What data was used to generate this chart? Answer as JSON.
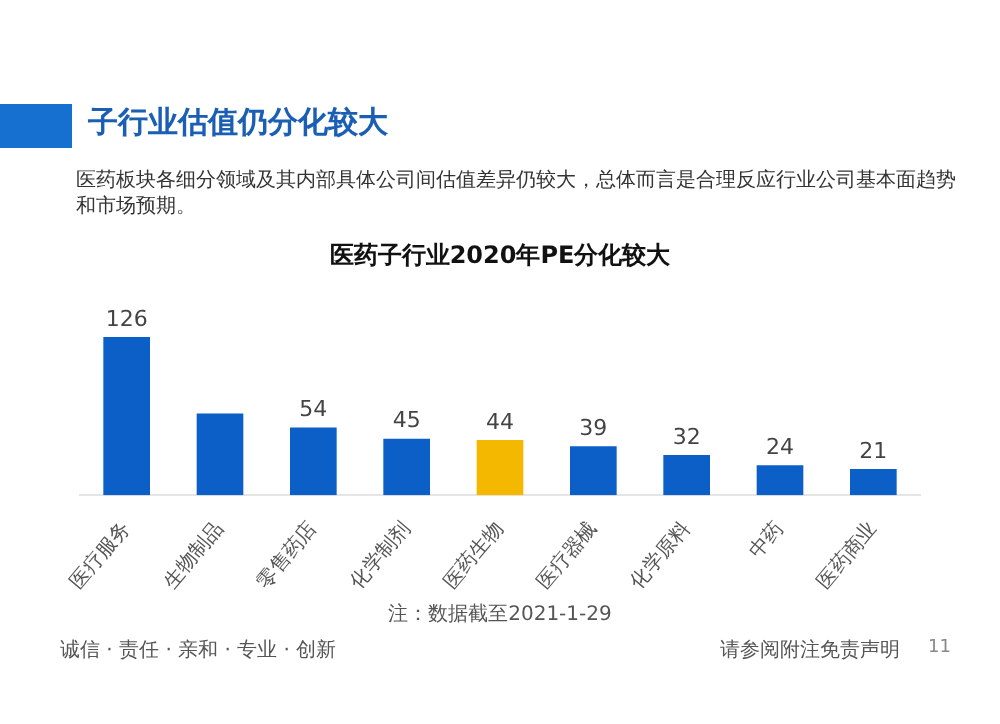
{
  "chart_data": {
    "type": "bar",
    "title": "医药子行业2020年PE分化较大",
    "annotations": [
      "子行业估值仍分化较大",
      "医药板块各细分领域及其内部具体公司间估值差异仍较大，总体而言是合理反应行业公司基本面趋势和市场预期。",
      "注：数据截至2021-1-29",
      "诚信 · 责任 · 亲和 · 专业 · 创新",
      "请参阅附注免责声明",
      "11"
    ],
    "categories": [
      "医疗服务",
      "生物制品",
      "零售药店",
      "化学制剂",
      "医药生物",
      "医疗器械",
      "化学原料",
      "中药",
      "医药商业"
    ],
    "values": [
      126,
      65,
      54,
      45,
      44,
      39,
      32,
      24,
      21
    ],
    "colors": [
      "#0b5fc7",
      "#0b5fc7",
      "#0b5fc7",
      "#0b5fc7",
      "#f5b800",
      "#0b5fc7",
      "#0b5fc7",
      "#0b5fc7",
      "#0b5fc7"
    ],
    "value_labels": [
      "126",
      null,
      "54",
      "45",
      "44",
      "39",
      "32",
      "24",
      "21"
    ],
    "tick_labels": "x"
  }
}
